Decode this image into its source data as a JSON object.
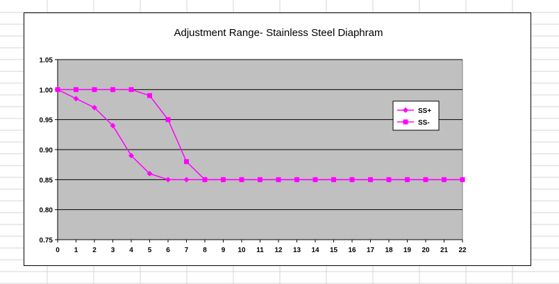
{
  "chart_data": {
    "type": "line",
    "title": "Adjustment Range- Stainless Steel Diaphram",
    "xlabel": "",
    "ylabel": "",
    "x": [
      0,
      1,
      2,
      3,
      4,
      5,
      6,
      7,
      8,
      9,
      10,
      11,
      12,
      13,
      14,
      15,
      16,
      17,
      18,
      19,
      20,
      21,
      22
    ],
    "xlim": [
      0,
      22
    ],
    "ylim": [
      0.75,
      1.05
    ],
    "y_ticks": [
      "0.75",
      "0.80",
      "0.85",
      "0.90",
      "0.95",
      "1.00",
      "1.05"
    ],
    "grid": "horizontal major gridlines",
    "plot_background": "#c0c0c0",
    "legend_position": "right",
    "series": [
      {
        "name": "SS+",
        "marker": "diamond",
        "color": "#ff00ff",
        "values": [
          1.0,
          0.985,
          0.97,
          0.94,
          0.89,
          0.86,
          0.85,
          0.85,
          0.85,
          0.85,
          0.85,
          0.85,
          0.85,
          0.85,
          0.85,
          0.85,
          0.85,
          0.85,
          0.85,
          0.85,
          0.85,
          0.85,
          0.85
        ]
      },
      {
        "name": "SS-",
        "marker": "square",
        "color": "#ff00ff",
        "values": [
          1.0,
          1.0,
          1.0,
          1.0,
          1.0,
          0.99,
          0.95,
          0.88,
          0.85,
          0.85,
          0.85,
          0.85,
          0.85,
          0.85,
          0.85,
          0.85,
          0.85,
          0.85,
          0.85,
          0.85,
          0.85,
          0.85,
          0.85
        ]
      }
    ]
  }
}
